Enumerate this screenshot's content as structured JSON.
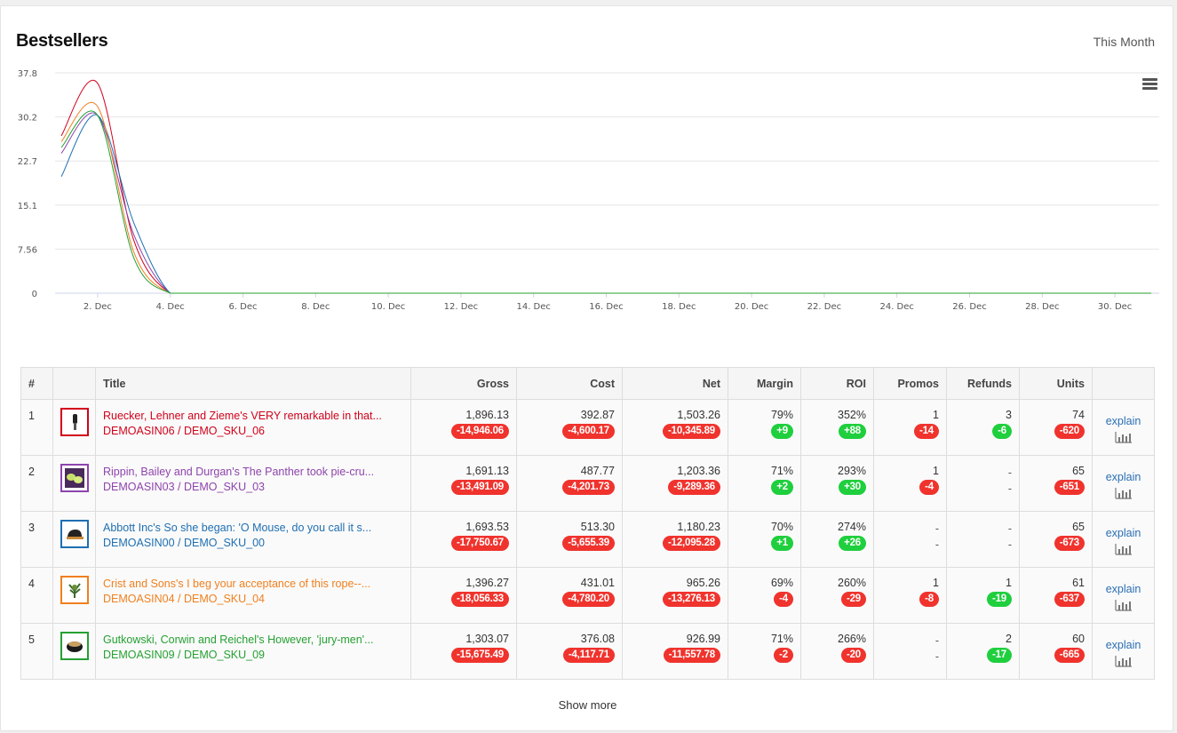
{
  "widget": {
    "title": "Bestsellers",
    "period": "This Month",
    "show_more": "Show more",
    "menu_icon": "hamburger-menu-icon"
  },
  "chart_data": {
    "type": "line",
    "x": [
      "1 Dec",
      "2 Dec",
      "3 Dec",
      "4 Dec",
      "5 Dec",
      "6 Dec",
      "7 Dec",
      "8 Dec",
      "9 Dec",
      "10 Dec",
      "11 Dec",
      "12 Dec",
      "13 Dec",
      "14 Dec",
      "15 Dec",
      "16 Dec",
      "17 Dec",
      "18 Dec",
      "19 Dec",
      "20 Dec",
      "21 Dec",
      "22 Dec",
      "23 Dec",
      "24 Dec",
      "25 Dec",
      "26 Dec",
      "27 Dec",
      "28 Dec",
      "29 Dec",
      "30 Dec",
      "31 Dec"
    ],
    "x_tick_labels": [
      "2. Dec",
      "4. Dec",
      "6. Dec",
      "8. Dec",
      "10. Dec",
      "12. Dec",
      "14. Dec",
      "16. Dec",
      "18. Dec",
      "20. Dec",
      "22. Dec",
      "24. Dec",
      "26. Dec",
      "28. Dec",
      "30. Dec"
    ],
    "y_tick_labels": [
      "0",
      "7.56",
      "15.1",
      "22.7",
      "30.2",
      "37.8"
    ],
    "ylim": [
      0,
      37.8
    ],
    "grid": true,
    "series": [
      {
        "color": "#d0021b",
        "values": [
          27,
          36,
          9,
          0,
          0,
          0,
          0,
          0,
          0,
          0,
          0,
          0,
          0,
          0,
          0,
          0,
          0,
          0,
          0,
          0,
          0,
          0,
          0,
          0,
          0,
          0,
          0,
          0,
          0,
          0,
          0
        ]
      },
      {
        "color": "#8e44ad",
        "values": [
          24,
          30.5,
          10,
          0,
          0,
          0,
          0,
          0,
          0,
          0,
          0,
          0,
          0,
          0,
          0,
          0,
          0,
          0,
          0,
          0,
          0,
          0,
          0,
          0,
          0,
          0,
          0,
          0,
          0,
          0,
          0
        ]
      },
      {
        "color": "#1f6fb2",
        "values": [
          20,
          30.5,
          12,
          0,
          0,
          0,
          0,
          0,
          0,
          0,
          0,
          0,
          0,
          0,
          0,
          0,
          0,
          0,
          0,
          0,
          0,
          0,
          0,
          0,
          0,
          0,
          0,
          0,
          0,
          0,
          0
        ]
      },
      {
        "color": "#f0801f",
        "values": [
          26,
          32,
          7,
          0,
          0,
          0,
          0,
          0,
          0,
          0,
          0,
          0,
          0,
          0,
          0,
          0,
          0,
          0,
          0,
          0,
          0,
          0,
          0,
          0,
          0,
          0,
          0,
          0,
          0,
          0,
          0
        ]
      },
      {
        "color": "#25a132",
        "values": [
          25,
          30.5,
          6,
          0,
          0,
          0,
          0,
          0,
          0,
          0,
          0,
          0,
          0,
          0,
          0,
          0,
          0,
          0,
          0,
          0,
          0,
          0,
          0,
          0,
          0,
          0,
          0,
          0,
          0,
          0,
          0
        ]
      }
    ]
  },
  "table": {
    "headers": {
      "idx": "#",
      "thumb": "",
      "title": "Title",
      "gross": "Gross",
      "cost": "Cost",
      "net": "Net",
      "margin": "Margin",
      "roi": "ROI",
      "promos": "Promos",
      "refunds": "Refunds",
      "units": "Units",
      "action": ""
    },
    "rows": [
      {
        "idx": "1",
        "color": "#d0021b",
        "icon": "razor-product-icon",
        "title": "Ruecker, Lehner and Zieme's VERY remarkable in that...",
        "sku": "DEMOASIN06 / DEMO_SKU_06",
        "gross": "1,896.13",
        "gross_d": "-14,946.06",
        "gross_s": "neg",
        "cost": "392.87",
        "cost_d": "-4,600.17",
        "cost_s": "neg",
        "net": "1,503.26",
        "net_d": "-10,345.89",
        "net_s": "neg",
        "margin": "79%",
        "margin_d": "+9",
        "margin_s": "pos",
        "roi": "352%",
        "roi_d": "+88",
        "roi_s": "pos",
        "promos": "1",
        "promos_d": "-14",
        "promos_s": "neg",
        "refunds": "3",
        "refunds_d": "-6",
        "refunds_s": "pos",
        "units": "74",
        "units_d": "-620",
        "units_s": "neg",
        "explain": "explain"
      },
      {
        "idx": "2",
        "color": "#8e44ad",
        "icon": "bowls-product-icon",
        "title": "Rippin, Bailey and Durgan's The Panther took pie-cru...",
        "sku": "DEMOASIN03 / DEMO_SKU_03",
        "gross": "1,691.13",
        "gross_d": "-13,491.09",
        "gross_s": "neg",
        "cost": "487.77",
        "cost_d": "-4,201.73",
        "cost_s": "neg",
        "net": "1,203.36",
        "net_d": "-9,289.36",
        "net_s": "neg",
        "margin": "71%",
        "margin_d": "+2",
        "margin_s": "pos",
        "roi": "293%",
        "roi_d": "+30",
        "roi_s": "pos",
        "promos": "1",
        "promos_d": "-4",
        "promos_s": "neg",
        "refunds": "-",
        "refunds_d": "-",
        "refunds_s": "none",
        "units": "65",
        "units_d": "-651",
        "units_s": "neg",
        "explain": "explain"
      },
      {
        "idx": "3",
        "color": "#1f6fb2",
        "icon": "cap-product-icon",
        "title": "Abbott Inc's So she began: 'O Mouse, do you call it s...",
        "sku": "DEMOASIN00 / DEMO_SKU_00",
        "gross": "1,693.53",
        "gross_d": "-17,750.67",
        "gross_s": "neg",
        "cost": "513.30",
        "cost_d": "-5,655.39",
        "cost_s": "neg",
        "net": "1,180.23",
        "net_d": "-12,095.28",
        "net_s": "neg",
        "margin": "70%",
        "margin_d": "+1",
        "margin_s": "pos",
        "roi": "274%",
        "roi_d": "+26",
        "roi_s": "pos",
        "promos": "-",
        "promos_d": "-",
        "promos_s": "none",
        "refunds": "-",
        "refunds_d": "-",
        "refunds_s": "none",
        "units": "65",
        "units_d": "-673",
        "units_s": "neg",
        "explain": "explain"
      },
      {
        "idx": "4",
        "color": "#f0801f",
        "icon": "plant-product-icon",
        "title": "Crist and Sons's I beg your acceptance of this rope--...",
        "sku": "DEMOASIN04 / DEMO_SKU_04",
        "gross": "1,396.27",
        "gross_d": "-18,056.33",
        "gross_s": "neg",
        "cost": "431.01",
        "cost_d": "-4,780.20",
        "cost_s": "neg",
        "net": "965.26",
        "net_d": "-13,276.13",
        "net_s": "neg",
        "margin": "69%",
        "margin_d": "-4",
        "margin_s": "neg",
        "roi": "260%",
        "roi_d": "-29",
        "roi_s": "neg",
        "promos": "1",
        "promos_d": "-8",
        "promos_s": "neg",
        "refunds": "1",
        "refunds_d": "-19",
        "refunds_s": "pos",
        "units": "61",
        "units_d": "-637",
        "units_s": "neg",
        "explain": "explain"
      },
      {
        "idx": "5",
        "color": "#25a132",
        "icon": "pot-product-icon",
        "title": "Gutkowski, Corwin and Reichel's However, 'jury-men'...",
        "sku": "DEMOASIN09 / DEMO_SKU_09",
        "gross": "1,303.07",
        "gross_d": "-15,675.49",
        "gross_s": "neg",
        "cost": "376.08",
        "cost_d": "-4,117.71",
        "cost_s": "neg",
        "net": "926.99",
        "net_d": "-11,557.78",
        "net_s": "neg",
        "margin": "71%",
        "margin_d": "-2",
        "margin_s": "neg",
        "roi": "266%",
        "roi_d": "-20",
        "roi_s": "neg",
        "promos": "-",
        "promos_d": "-",
        "promos_s": "none",
        "refunds": "2",
        "refunds_d": "-17",
        "refunds_s": "pos",
        "units": "60",
        "units_d": "-665",
        "units_s": "neg",
        "explain": "explain"
      }
    ]
  }
}
